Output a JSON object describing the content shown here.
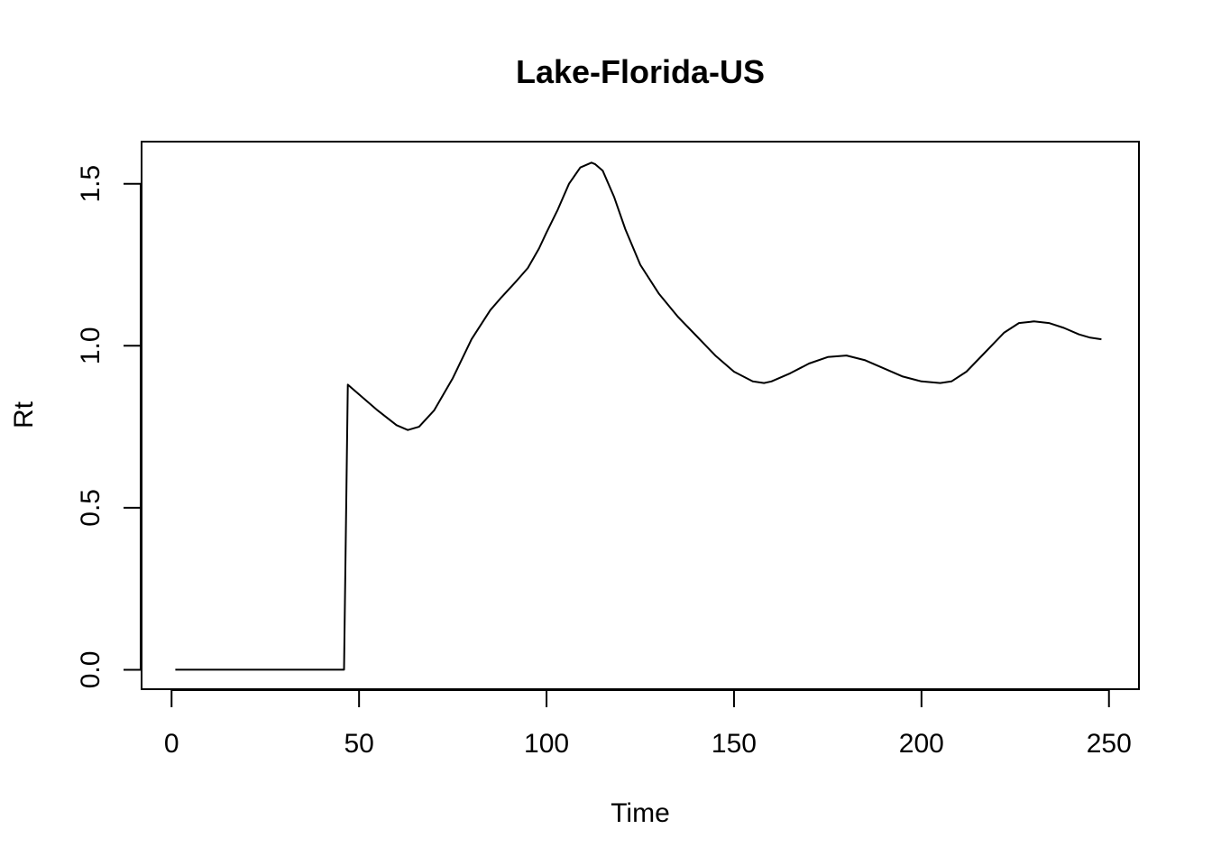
{
  "chart_data": {
    "type": "line",
    "title": "Lake-Florida-US",
    "xlabel": "Time",
    "ylabel": "Rt",
    "xlim": [
      -8,
      258
    ],
    "ylim": [
      -0.06,
      1.63
    ],
    "xticks": [
      0,
      50,
      100,
      150,
      200,
      250
    ],
    "xtick_labels": [
      "0",
      "50",
      "100",
      "150",
      "200",
      "250"
    ],
    "yticks": [
      0.0,
      0.5,
      1.0,
      1.5
    ],
    "ytick_labels": [
      "0.0",
      "0.5",
      "1.0",
      "1.5"
    ],
    "grid": false,
    "legend": "none",
    "line_color": "#000000",
    "series": [
      {
        "x": [
          1,
          10,
          20,
          30,
          40,
          46,
          47,
          48,
          50,
          55,
          60,
          63,
          66,
          70,
          75,
          80,
          85,
          88,
          92,
          95,
          98,
          100,
          103,
          106,
          109,
          112,
          113,
          115,
          118,
          121,
          125,
          130,
          135,
          140,
          145,
          150,
          155,
          158,
          160,
          165,
          170,
          175,
          180,
          185,
          190,
          195,
          200,
          205,
          208,
          212,
          217,
          222,
          226,
          230,
          234,
          238,
          242,
          245,
          248
        ],
        "y": [
          0.0,
          0.0,
          0.0,
          0.0,
          0.0,
          0.0,
          0.88,
          0.87,
          0.85,
          0.8,
          0.755,
          0.74,
          0.75,
          0.8,
          0.9,
          1.02,
          1.11,
          1.15,
          1.2,
          1.24,
          1.3,
          1.35,
          1.42,
          1.5,
          1.55,
          1.565,
          1.56,
          1.54,
          1.46,
          1.36,
          1.25,
          1.16,
          1.09,
          1.03,
          0.97,
          0.92,
          0.89,
          0.885,
          0.89,
          0.915,
          0.945,
          0.965,
          0.97,
          0.955,
          0.93,
          0.905,
          0.89,
          0.885,
          0.89,
          0.92,
          0.98,
          1.04,
          1.07,
          1.075,
          1.07,
          1.055,
          1.035,
          1.025,
          1.02
        ]
      }
    ]
  }
}
